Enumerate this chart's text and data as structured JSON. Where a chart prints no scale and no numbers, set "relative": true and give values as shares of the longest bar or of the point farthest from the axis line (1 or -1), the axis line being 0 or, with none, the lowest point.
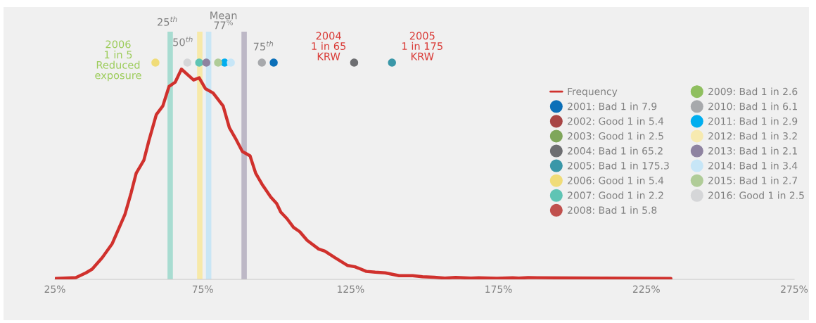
{
  "chart_data": {
    "type": "line",
    "relative": true,
    "xlim": [
      25,
      275
    ],
    "xticks": [
      {
        "value": 25,
        "label": "25%"
      },
      {
        "value": 75,
        "label": "75%"
      },
      {
        "value": 125,
        "label": "125%"
      },
      {
        "value": 175,
        "label": "175%"
      },
      {
        "value": 225,
        "label": "225%"
      },
      {
        "value": 275,
        "label": "275%"
      }
    ],
    "grid": false,
    "legend": "right",
    "tick_labels": "x",
    "series": [
      {
        "name": "Frequency",
        "color": "#d0312d",
        "marker": "none",
        "x": [
          25.3,
          32.1,
          35.5,
          37.6,
          41.0,
          44.4,
          48.7,
          50.8,
          52.5,
          55.1,
          56.8,
          59.3,
          61.5,
          63.6,
          65.7,
          67.8,
          71.9,
          73.8,
          75.9,
          78.5,
          81.9,
          84.0,
          86.1,
          88.4,
          91.0,
          92.9,
          95.0,
          98.0,
          100.0,
          101.4,
          103.5,
          105.7,
          107.8,
          110.3,
          114.2,
          116.3,
          119.7,
          124.0,
          126.5,
          130.3,
          133.3,
          136.7,
          141.4,
          146.0,
          149.3,
          153.3,
          156.9,
          160.5,
          165.7,
          168.3,
          174.5,
          179.8,
          181.9,
          185.0,
          233.3
        ],
        "values": [
          0.004,
          0.008,
          0.03,
          0.047,
          0.1,
          0.165,
          0.3,
          0.4,
          0.49,
          0.55,
          0.64,
          0.76,
          0.8,
          0.89,
          0.91,
          0.97,
          0.92,
          0.93,
          0.88,
          0.86,
          0.8,
          0.7,
          0.65,
          0.59,
          0.57,
          0.49,
          0.44,
          0.38,
          0.35,
          0.31,
          0.28,
          0.24,
          0.22,
          0.18,
          0.14,
          0.13,
          0.1,
          0.064,
          0.058,
          0.037,
          0.033,
          0.03,
          0.017,
          0.017,
          0.012,
          0.01,
          0.006,
          0.009,
          0.006,
          0.007,
          0.005,
          0.007,
          0.006,
          0.008,
          0.004
        ]
      },
      {
        "name": "2001: Bad 1 in 7.9",
        "type": "scatter",
        "color": "#0b6fb8",
        "x": [
          99.0
        ],
        "values": [
          1
        ]
      },
      {
        "name": "2002: Good 1 in 5.4",
        "type": "scatter",
        "color": "#a84545",
        "x": [
          null
        ],
        "values": [
          null
        ]
      },
      {
        "name": "2003: Good 1 in 2.5",
        "type": "scatter",
        "color": "#7fa65a",
        "x": [
          null
        ],
        "values": [
          null
        ]
      },
      {
        "name": "2004: Bad 1 in 65.2",
        "type": "scatter",
        "color": "#6d6e71",
        "x": [
          126.2
        ],
        "values": [
          1
        ]
      },
      {
        "name": "2005: Bad 1 in 175.3",
        "type": "scatter",
        "color": "#3a97a8",
        "x": [
          139.0
        ],
        "values": [
          1
        ]
      },
      {
        "name": "2006: Good 1 in 5.4",
        "type": "scatter",
        "color": "#f0dc78",
        "x": [
          59.0
        ],
        "values": [
          1
        ]
      },
      {
        "name": "2007: Good 1 in 2.2",
        "type": "scatter",
        "color": "#5fc4b4",
        "x": [
          73.8
        ],
        "values": [
          1
        ]
      },
      {
        "name": "2008: Bad 1 in 5.8",
        "type": "scatter",
        "color": "#c0504d",
        "x": [
          null
        ],
        "values": [
          null
        ]
      },
      {
        "name": "2009: Bad 1 in 2.6",
        "type": "scatter",
        "color": "#8fbf5f",
        "x": [
          null
        ],
        "values": [
          null
        ]
      },
      {
        "name": "2010: Bad 1 in 6.1",
        "type": "scatter",
        "color": "#a7a9ac",
        "x": [
          95.0
        ],
        "values": [
          1
        ]
      },
      {
        "name": "2011: Bad 1 in 2.9",
        "type": "scatter",
        "color": "#00aeef",
        "x": [
          82.4
        ],
        "values": [
          1
        ]
      },
      {
        "name": "2012: Bad 1 in 3.2",
        "type": "scatter",
        "color": "#f7eab0",
        "x": [
          null
        ],
        "values": [
          null
        ]
      },
      {
        "name": "2013: Bad 1 in 2.1",
        "type": "scatter",
        "color": "#8e83a0",
        "x": [
          76.2
        ],
        "values": [
          1
        ]
      },
      {
        "name": "2014: Bad 1 in 3.4",
        "type": "scatter",
        "color": "#c7e6f7",
        "x": [
          84.5
        ],
        "values": [
          1
        ]
      },
      {
        "name": "2015: Bad 1 in 2.7",
        "type": "scatter",
        "color": "#b0cc98",
        "x": [
          80.2
        ],
        "values": [
          1
        ]
      },
      {
        "name": "2016: Good 1 in 2.5",
        "type": "scatter",
        "color": "#d5d6d8",
        "x": [
          69.8
        ],
        "values": [
          1
        ]
      }
    ],
    "ref_lines": [
      {
        "axis": "x",
        "value": 64,
        "label": "25$^{th}$",
        "color": "#a8dcd1"
      },
      {
        "axis": "x",
        "value": 74,
        "label": "50$^{th}$",
        "color": "#f7e9a8"
      },
      {
        "axis": "x",
        "value": 77,
        "label": "Mean\n77$^{%}$",
        "color": "#c9e6f5"
      },
      {
        "axis": "x",
        "value": 89,
        "label": "75$^{th}$",
        "color": "#bdb8c6"
      }
    ],
    "annotations": [
      {
        "text": "2006\n1 in 5\nReduced\nexposure",
        "x": 59.0,
        "y": 1
      },
      {
        "text": "2004\n1 in 65\nKRW",
        "x": 126.2,
        "y": 1
      },
      {
        "text": "2005\n1 in 175\nKRW",
        "x": 139.0,
        "y": 1
      }
    ]
  }
}
